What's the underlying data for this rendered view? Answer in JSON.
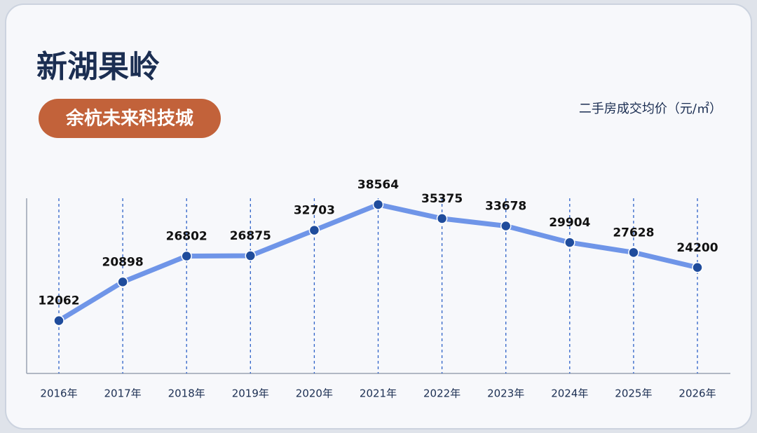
{
  "chart_data": {
    "type": "line",
    "title": "新湖果岭",
    "subtitle": "余杭未来科技城",
    "ylabel": "二手房成交均价（元/㎡）",
    "categories": [
      "2016年",
      "2017年",
      "2018年",
      "2019年",
      "2020年",
      "2021年",
      "2022年",
      "2023年",
      "2024年",
      "2025年",
      "2026年"
    ],
    "values": [
      12062,
      20898,
      26802,
      26875,
      32703,
      38564,
      35375,
      33678,
      29904,
      27628,
      24200
    ],
    "color": "#6f95e8",
    "marker_color": "#1f4c9c",
    "ylim": [
      0,
      40000
    ],
    "grid": true
  }
}
